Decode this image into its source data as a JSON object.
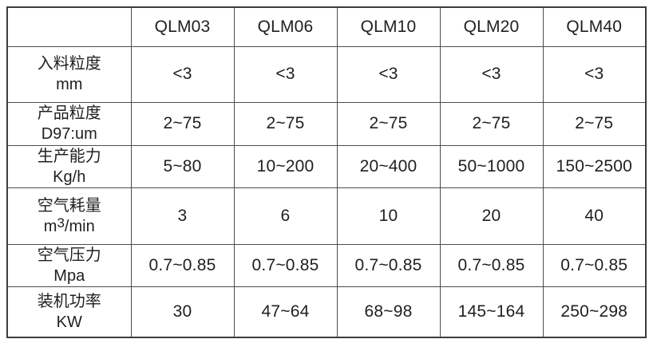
{
  "table": {
    "corner_label": "",
    "columns": [
      "QLM03",
      "QLM06",
      "QLM10",
      "QLM20",
      "QLM40"
    ],
    "rows": [
      {
        "name": "入料粒度",
        "unit": "mm",
        "values": [
          "<3",
          "<3",
          "<3",
          "<3",
          "<3"
        ]
      },
      {
        "name": "产品粒度",
        "unit": "D97:um",
        "values": [
          "2~75",
          "2~75",
          "2~75",
          "2~75",
          "2~75"
        ]
      },
      {
        "name": "生产能力",
        "unit": "Kg/h",
        "values": [
          "5~80",
          "10~200",
          "20~400",
          "50~1000",
          "150~2500"
        ]
      },
      {
        "name": "空气耗量",
        "unit_prefix": "m",
        "unit_sup": "3",
        "unit_suffix": "/min",
        "values": [
          "3",
          "6",
          "10",
          "20",
          "40"
        ]
      },
      {
        "name": "空气压力",
        "unit": "Mpa",
        "values": [
          "0.7~0.85",
          "0.7~0.85",
          "0.7~0.85",
          "0.7~0.85",
          "0.7~0.85"
        ]
      },
      {
        "name": "装机功率",
        "unit": "KW",
        "values": [
          "30",
          "47~64",
          "68~98",
          "145~164",
          "250~298"
        ]
      }
    ],
    "colors": {
      "border_outer": "#3c3c3c",
      "border_inner": "#4d4d4d",
      "text": "#1f1f1f",
      "background": "#ffffff"
    }
  }
}
